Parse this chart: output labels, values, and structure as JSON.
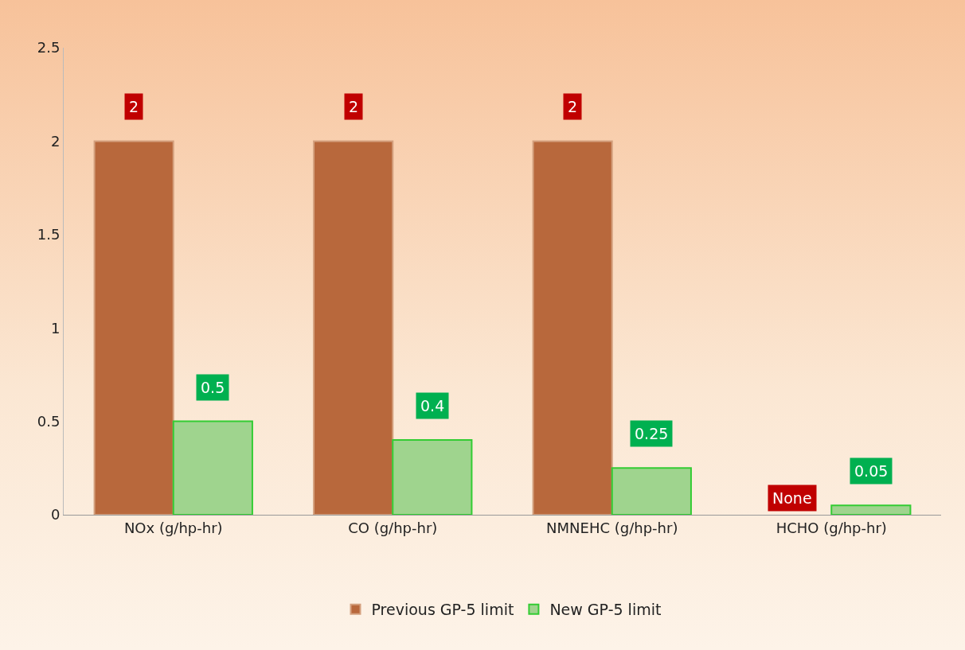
{
  "chart_data": {
    "type": "bar",
    "categories": [
      "NOx (g/hp-hr)",
      "CO (g/hp-hr)",
      "NMNEHC (g/hp-hr)",
      "HCHO (g/hp-hr)"
    ],
    "series": [
      {
        "name": "Previous GP-5 limit",
        "color": "#b8683c",
        "values": [
          2,
          2,
          2,
          null
        ],
        "value_labels": [
          "2",
          "2",
          "2",
          "None"
        ]
      },
      {
        "name": "New GP-5 limit",
        "color": "#9fd48e",
        "values": [
          0.5,
          0.4,
          0.25,
          0.05
        ],
        "value_labels": [
          "0.5",
          "0.4",
          "0.25",
          "0.05"
        ]
      }
    ],
    "ylim": [
      0,
      2.5
    ],
    "yticks": [
      0,
      0.5,
      1,
      1.5,
      2,
      2.5
    ],
    "grid": false,
    "legend": "bottom"
  }
}
